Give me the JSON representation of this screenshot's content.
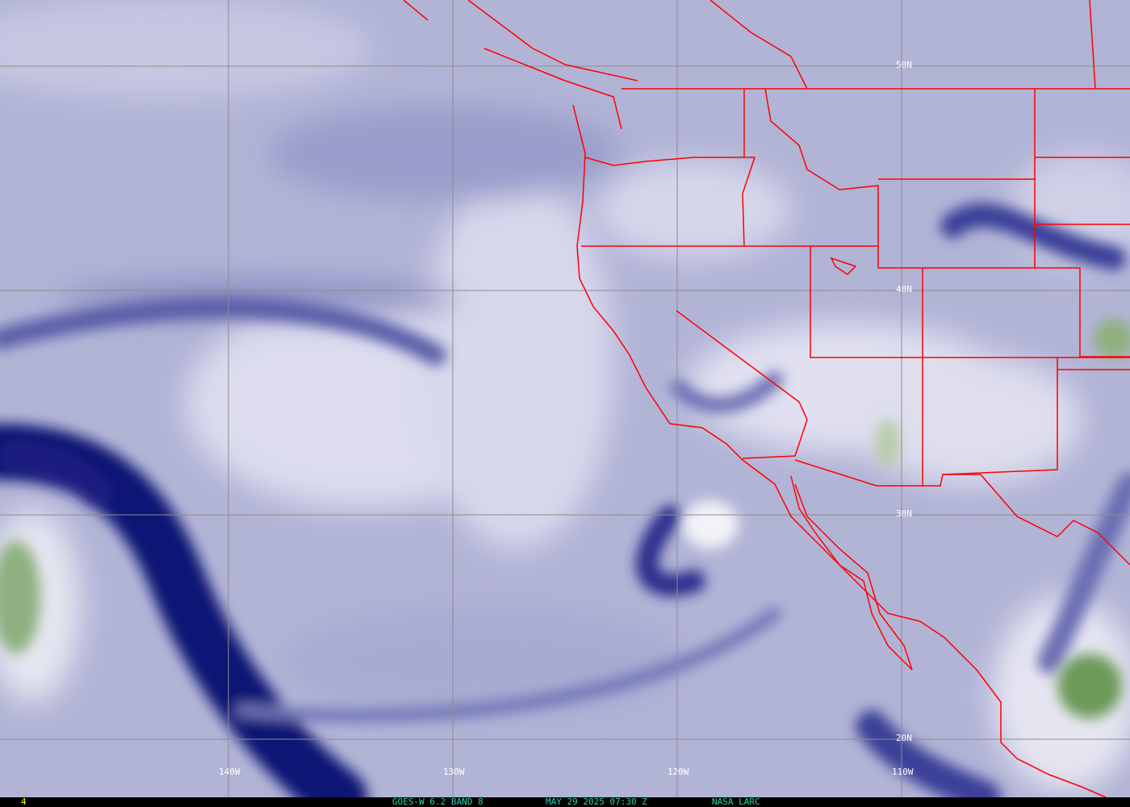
{
  "map": {
    "latitude_labels": [
      "50N",
      "40N",
      "30N",
      "20N"
    ],
    "longitude_labels": [
      "140W",
      "130W",
      "120W",
      "110W"
    ],
    "colors": {
      "grid": "#8c8c8c",
      "borders": "#ff0000",
      "dry": "#1a1f80",
      "moist": "#e8e8f4",
      "cloud_green": "#4e8a3a"
    }
  },
  "footer": {
    "frame_number": "4",
    "satellite_band": "GOES-W 6.2 BAND 8",
    "timestamp": "MAY 29 2025 07:30 Z",
    "source": "NASA LARC",
    "frame_color": "#ffff00",
    "text_color": "#2ad4b0"
  }
}
